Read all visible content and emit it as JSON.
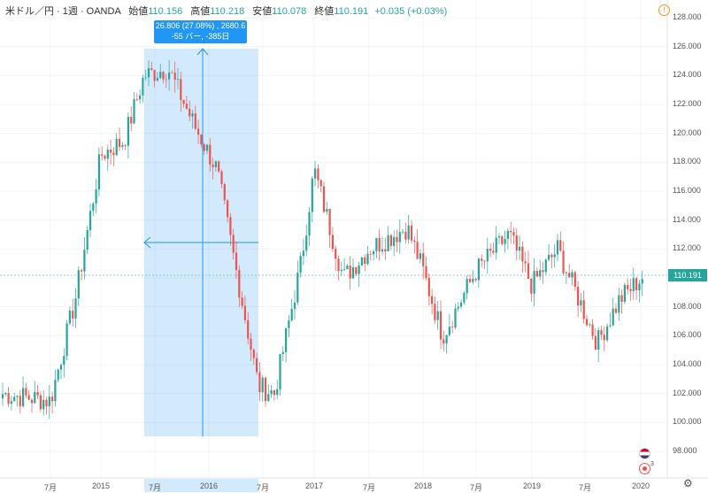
{
  "legend": {
    "symbol": "米ドル／円 · 1週 · OANDA",
    "open_label": "始値",
    "open": "110.156",
    "high_label": "高値",
    "high": "110.218",
    "low_label": "安値",
    "low": "110.078",
    "close_label": "終値",
    "close": "110.191",
    "change": "+0.035 (+0.03%)"
  },
  "measure_tooltip": {
    "line1": "26.806 (27.08%) , 2680.6",
    "line2": "-55 バー, -385日"
  },
  "price_axis": {
    "ticks": [
      "128.000",
      "126.000",
      "124.000",
      "122.000",
      "120.000",
      "118.000",
      "116.000",
      "114.000",
      "112.000",
      "110.000",
      "108.000",
      "106.000",
      "104.000",
      "102.000",
      "100.000",
      "98.000"
    ],
    "current_price": "110.191"
  },
  "time_axis": {
    "labels": [
      "7月",
      "2015",
      "7月",
      "2016",
      "7月",
      "2017",
      "7月",
      "2018",
      "7月",
      "2019",
      "7月",
      "2020"
    ]
  },
  "event_count": "3",
  "colors": {
    "up": "#26a69a",
    "down": "#ef5350",
    "measure": "#2196f3",
    "accent": "#f7931a"
  },
  "chart_data": {
    "type": "candlestick",
    "symbol": "USD/JPY",
    "interval": "1W",
    "ylim": [
      97,
      128.5
    ],
    "x": [
      "2014-04",
      "2014-07",
      "2014-10",
      "2015-01",
      "2015-04",
      "2015-06",
      "2015-08",
      "2015-10",
      "2016-01",
      "2016-04",
      "2016-06",
      "2016-09",
      "2016-11",
      "2017-01",
      "2017-04",
      "2017-07",
      "2017-10",
      "2018-01",
      "2018-03",
      "2018-06",
      "2018-10",
      "2019-01",
      "2019-04",
      "2019-06",
      "2019-08",
      "2019-10",
      "2020-01"
    ],
    "y": [
      102.0,
      101.5,
      108.5,
      118.5,
      119.5,
      124.0,
      124.5,
      120.5,
      117.5,
      109.5,
      102.5,
      102.0,
      111.0,
      117.5,
      110.0,
      112.0,
      113.5,
      110.5,
      106.0,
      110.5,
      113.0,
      109.5,
      112.0,
      107.5,
      105.5,
      108.5,
      110.2
    ],
    "measure": {
      "start": "2015-06",
      "end": "2016-06",
      "price_change": 26.806,
      "percent_change": 27.08,
      "bars": -55,
      "days": -385
    }
  }
}
